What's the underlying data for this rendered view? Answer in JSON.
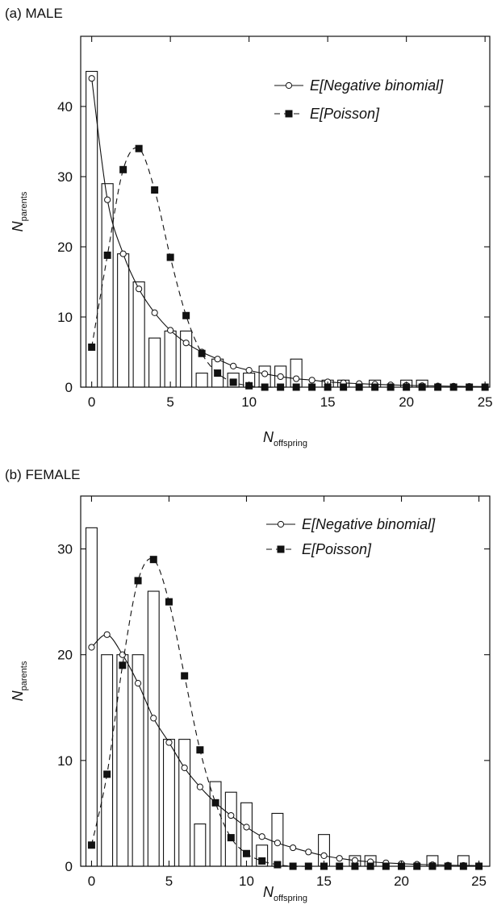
{
  "chart_data": [
    {
      "type": "bar",
      "panel_title": "(a)  MALE",
      "xlabel_main": "N",
      "xlabel_sub": "offspring",
      "ylabel_main": "N",
      "ylabel_sub": "parents",
      "xlim": [
        -0.7,
        25.3
      ],
      "ylim": [
        0,
        50
      ],
      "x_ticks": [
        0,
        5,
        10,
        15,
        20,
        25
      ],
      "y_ticks": [
        0,
        10,
        20,
        30,
        40
      ],
      "legend_position": "top-right",
      "bars": {
        "x": [
          0,
          1,
          2,
          3,
          4,
          5,
          6,
          7,
          8,
          9,
          10,
          11,
          12,
          13,
          14,
          15,
          16,
          17,
          18,
          19,
          20,
          21,
          22,
          23,
          24,
          25
        ],
        "values": [
          45,
          29,
          19,
          15,
          7,
          8,
          8,
          2,
          4,
          2,
          2,
          3,
          3,
          4,
          0,
          1,
          1,
          0,
          1,
          0,
          1,
          1,
          0,
          0,
          0,
          0
        ]
      },
      "series": [
        {
          "name": "E[Negative binomial]",
          "style": "solid-open-circle",
          "x": [
            0,
            1,
            2,
            3,
            4,
            5,
            6,
            7,
            8,
            9,
            10,
            11,
            12,
            13,
            14,
            15,
            16,
            17,
            18,
            19,
            20,
            21,
            22,
            23,
            24,
            25
          ],
          "values": [
            44,
            26.7,
            19,
            14,
            10.6,
            8.1,
            6.3,
            5,
            4,
            3,
            2.4,
            1.9,
            1.5,
            1.2,
            1,
            0.75,
            0.6,
            0.5,
            0.4,
            0.32,
            0.26,
            0.2,
            0.16,
            0.13,
            0.1,
            0.08
          ]
        },
        {
          "name": "E[Poisson]",
          "style": "dashed-filled-square",
          "x": [
            0,
            1,
            2,
            3,
            4,
            5,
            6,
            7,
            8,
            9,
            10,
            11,
            12,
            13,
            14,
            15,
            16,
            17,
            18,
            19,
            20,
            21,
            22,
            23,
            24,
            25
          ],
          "values": [
            5.7,
            18.8,
            31,
            34,
            28.1,
            18.5,
            10.2,
            4.8,
            2,
            0.7,
            0.2,
            0,
            0,
            0,
            0,
            0,
            0,
            0,
            0,
            0,
            0,
            0,
            0,
            0,
            0,
            0
          ]
        }
      ]
    },
    {
      "type": "bar",
      "panel_title": "(b) FEMALE",
      "xlabel_main": "N",
      "xlabel_sub": "offspring",
      "ylabel_main": "N",
      "ylabel_sub": "parents",
      "xlim": [
        -0.7,
        25.7
      ],
      "ylim": [
        0,
        35
      ],
      "x_ticks": [
        0,
        5,
        10,
        15,
        20,
        25
      ],
      "y_ticks": [
        0,
        10,
        20,
        30
      ],
      "legend_position": "top-right",
      "bars": {
        "x": [
          0,
          1,
          2,
          3,
          4,
          5,
          6,
          7,
          8,
          9,
          10,
          11,
          12,
          13,
          14,
          15,
          16,
          17,
          18,
          19,
          20,
          21,
          22,
          23,
          24,
          25
        ],
        "values": [
          32,
          20,
          20,
          20,
          26,
          12,
          12,
          4,
          8,
          7,
          6,
          2,
          5,
          0,
          0,
          3,
          0,
          1,
          1,
          0,
          0,
          0,
          1,
          0,
          1,
          0
        ]
      },
      "series": [
        {
          "name": "E[Negative binomial]",
          "style": "solid-open-circle",
          "x": [
            0,
            1,
            2,
            3,
            4,
            5,
            6,
            7,
            8,
            9,
            10,
            11,
            12,
            13,
            14,
            15,
            16,
            17,
            18,
            19,
            20,
            21,
            22,
            23,
            24,
            25
          ],
          "values": [
            20.7,
            21.9,
            20,
            17.3,
            14,
            11.7,
            9.3,
            7.5,
            6,
            4.8,
            3.7,
            2.8,
            2.2,
            1.75,
            1.35,
            1,
            0.75,
            0.55,
            0.42,
            0.32,
            0.24,
            0.18,
            0.14,
            0.1,
            0.08,
            0.06
          ]
        },
        {
          "name": "E[Poisson]",
          "style": "dashed-filled-square",
          "x": [
            0,
            1,
            2,
            3,
            4,
            5,
            6,
            7,
            8,
            9,
            10,
            11,
            12,
            13,
            14,
            15,
            16,
            17,
            18,
            19,
            20,
            21,
            22,
            23,
            24,
            25
          ],
          "values": [
            2,
            8.7,
            19,
            27,
            29,
            25,
            18,
            11,
            6,
            2.7,
            1.2,
            0.5,
            0.15,
            0,
            0,
            0,
            0,
            0,
            0,
            0,
            0,
            0,
            0,
            0,
            0,
            0
          ]
        }
      ]
    }
  ]
}
